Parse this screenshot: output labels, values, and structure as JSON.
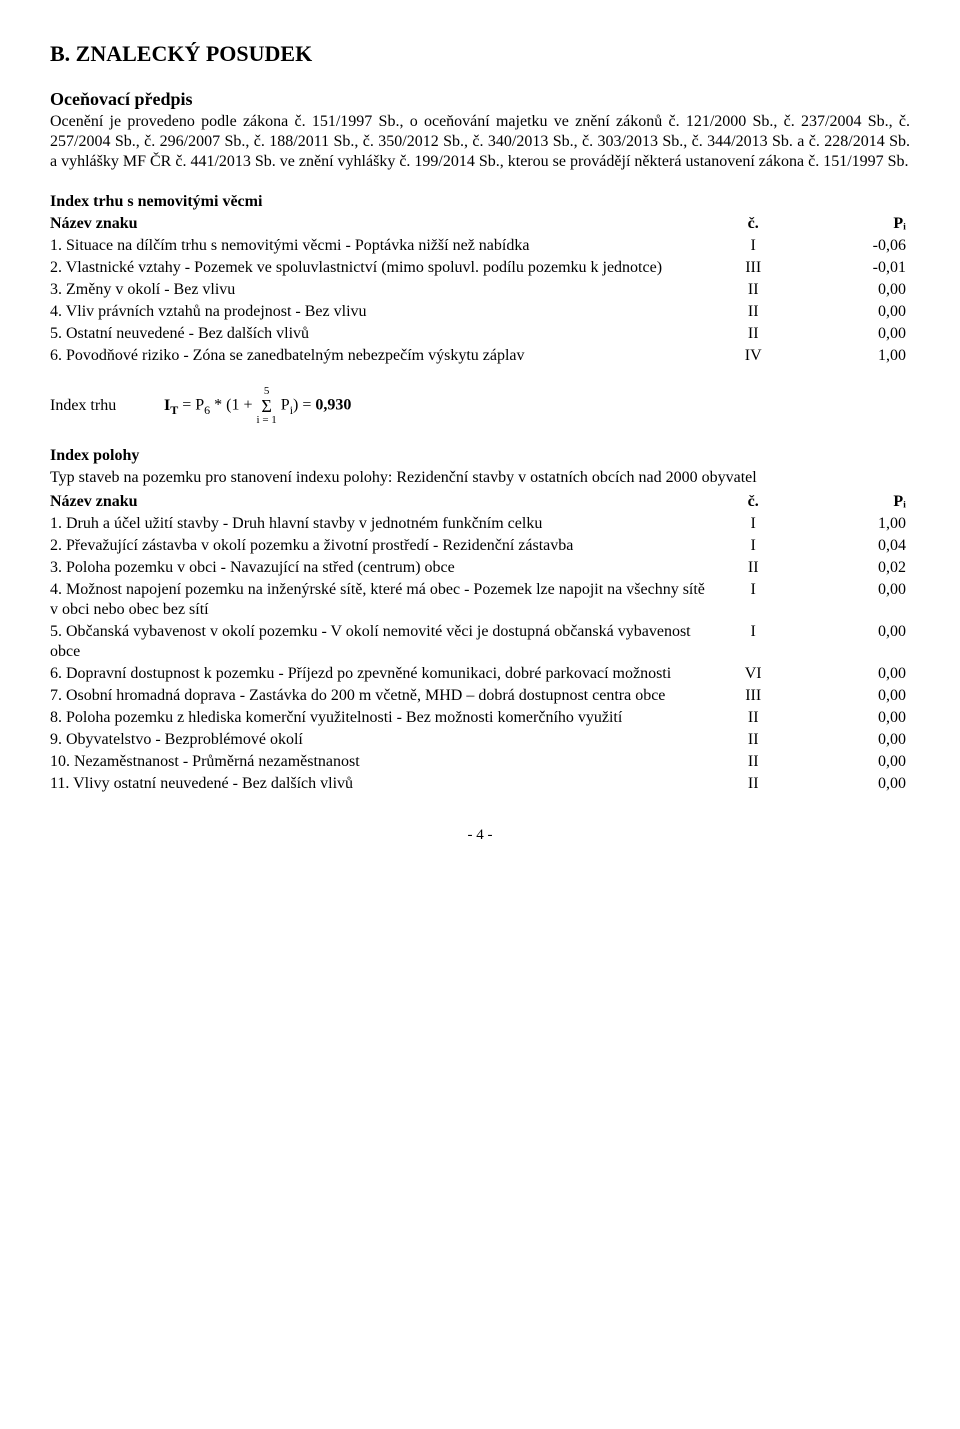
{
  "title": "B. ZNALECKÝ POSUDEK",
  "section1": {
    "heading": "Oceňovací předpis",
    "paragraph": "Ocenění je provedeno podle zákona č. 151/1997 Sb., o oceňování majetku ve znění zákonů č. 121/2000 Sb., č. 237/2004 Sb., č. 257/2004 Sb., č. 296/2007 Sb., č. 188/2011 Sb., č. 350/2012 Sb., č. 340/2013 Sb., č. 303/2013 Sb., č. 344/2013 Sb. a č. 228/2014 Sb. a vyhlášky MF ČR č. 441/2013 Sb. ve znění vyhlášky č. 199/2014 Sb., kterou se provádějí některá ustanovení zákona č. 151/1997 Sb."
  },
  "table1": {
    "heading": "Index trhu s nemovitými věcmi",
    "header": {
      "name": "Název znaku",
      "c": "č.",
      "p": "Pᵢ"
    },
    "rows": [
      {
        "name": "1. Situace na dílčím trhu s nemovitými věcmi - Poptávka nižší než nabídka",
        "c": "I",
        "p": "-0,06"
      },
      {
        "name": "2. Vlastnické vztahy - Pozemek ve spoluvlastnictví (mimo spoluvl. podílu pozemku k jednotce)",
        "c": "III",
        "p": "-0,01"
      },
      {
        "name": "3. Změny v okolí - Bez vlivu",
        "c": "II",
        "p": "0,00"
      },
      {
        "name": "4. Vliv právních vztahů na prodejnost - Bez vlivu",
        "c": "II",
        "p": "0,00"
      },
      {
        "name": "5. Ostatní neuvedené - Bez dalších vlivů",
        "c": "II",
        "p": "0,00"
      },
      {
        "name": "6. Povodňové riziko - Zóna se zanedbatelným nebezpečím výskytu záplav",
        "c": "IV",
        "p": "1,00"
      }
    ]
  },
  "formula": {
    "label": "Index trhu",
    "pre": "I",
    "sub1": "T",
    "eq1": " = P",
    "sub2": "6",
    "eq2": " * (1 + ",
    "sigma_top": "5",
    "sigma_bot": "i = 1",
    "eq3": " P",
    "sub3": "i",
    "eq4": ") = ",
    "result": "0,930"
  },
  "section2": {
    "heading": "Index polohy",
    "paragraph": "Typ staveb na pozemku pro stanovení indexu polohy: Rezidenční stavby v ostatních obcích nad 2000 obyvatel"
  },
  "table2": {
    "header": {
      "name": "Název znaku",
      "c": "č.",
      "p": "Pᵢ"
    },
    "rows": [
      {
        "name": "1. Druh a účel užití stavby - Druh hlavní stavby v jednotném funkčním celku",
        "c": "I",
        "p": "1,00"
      },
      {
        "name": "2. Převažující zástavba v okolí pozemku a životní prostředí - Rezidenční zástavba",
        "c": "I",
        "p": "0,04"
      },
      {
        "name": "3. Poloha pozemku v obci - Navazující na střed (centrum) obce",
        "c": "II",
        "p": "0,02"
      },
      {
        "name": "4. Možnost napojení pozemku na inženýrské sítě, které má obec - Pozemek lze napojit na všechny sítě v obci nebo obec bez sítí",
        "c": "I",
        "p": "0,00"
      },
      {
        "name": "5. Občanská vybavenost v okolí pozemku - V okolí nemovité věci je dostupná občanská vybavenost obce",
        "c": "I",
        "p": "0,00"
      },
      {
        "name": "6. Dopravní dostupnost k pozemku - Příjezd po zpevněné komunikaci, dobré parkovací možnosti",
        "c": "VI",
        "p": "0,00"
      },
      {
        "name": "7. Osobní hromadná doprava - Zastávka do 200 m včetně, MHD – dobrá dostupnost centra obce",
        "c": "III",
        "p": "0,00"
      },
      {
        "name": "8. Poloha pozemku z hlediska komerční využitelnosti - Bez možnosti komerčního využití",
        "c": "II",
        "p": "0,00"
      },
      {
        "name": "9. Obyvatelstvo - Bezproblémové okolí",
        "c": "II",
        "p": "0,00"
      },
      {
        "name": "10. Nezaměstnanost - Průměrná nezaměstnanost",
        "c": "II",
        "p": "0,00"
      },
      {
        "name": "11. Vlivy ostatní neuvedené - Bez dalších vlivů",
        "c": "II",
        "p": "0,00"
      }
    ]
  },
  "pagefoot": "- 4 -"
}
